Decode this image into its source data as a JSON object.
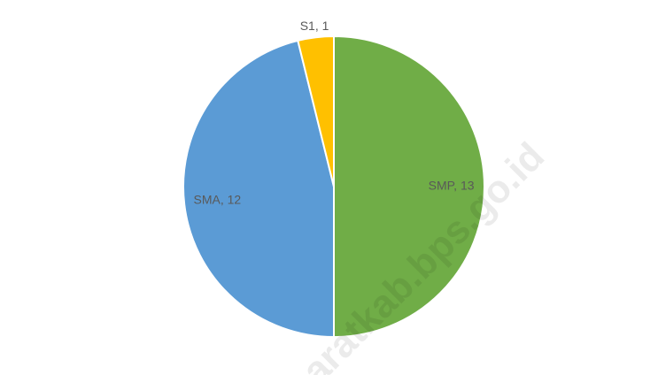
{
  "chart_data": {
    "type": "pie",
    "values": [
      13,
      12,
      1
    ],
    "value_labels": [
      "SMP, 13",
      "SMA, 12",
      "S1, 1"
    ],
    "colors": [
      "#70ad47",
      "#5b9bd5",
      "#ffc000"
    ],
    "watermark": "aratkab.bps.go.id"
  }
}
